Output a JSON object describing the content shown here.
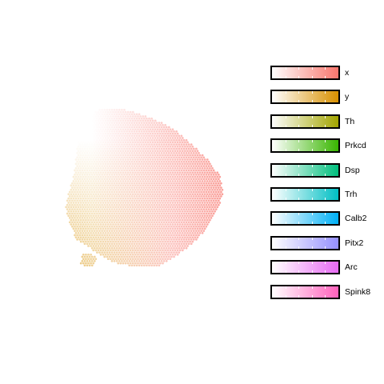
{
  "chart_data": {
    "type": "scatter",
    "description_type": "spatial-spot-map",
    "title": "",
    "xlabel": "",
    "ylabel": "",
    "grid": false,
    "legend_position": "right",
    "legend": [
      {
        "name": "x",
        "color": "#f8766d"
      },
      {
        "name": "y",
        "color": "#d89000"
      },
      {
        "name": "Th",
        "color": "#a3a500"
      },
      {
        "name": "Prkcd",
        "color": "#39b600"
      },
      {
        "name": "Dsp",
        "color": "#00bf7d"
      },
      {
        "name": "Trh",
        "color": "#00bfc4"
      },
      {
        "name": "Calb2",
        "color": "#00b0f6"
      },
      {
        "name": "Pitx2",
        "color": "#9590ff"
      },
      {
        "name": "Arc",
        "color": "#e76bf3"
      },
      {
        "name": "Spink8",
        "color": "#ff62bc"
      }
    ]
  }
}
